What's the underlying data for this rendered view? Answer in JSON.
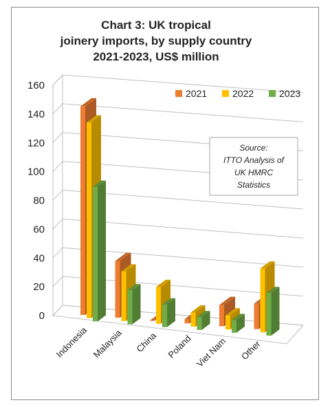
{
  "chart_data": {
    "type": "bar",
    "title": [
      "Chart 3: UK tropical",
      "joinery imports, by supply country",
      "2021-2023, US$ million"
    ],
    "categories": [
      "Indonesia",
      "Malaysia",
      "China",
      "Poland",
      "Viet Nam",
      "Other"
    ],
    "series": [
      {
        "name": "2021",
        "values": [
          147,
          40,
          0,
          3,
          15,
          18
        ],
        "color": "#ED7D31"
      },
      {
        "name": "2022",
        "values": [
          138,
          35,
          26,
          10,
          10,
          45
        ],
        "color": "#FFC000"
      },
      {
        "name": "2023",
        "values": [
          95,
          24,
          16,
          9,
          9,
          30
        ],
        "color": "#70AD47"
      }
    ],
    "ylim": [
      0,
      160
    ],
    "yticks": [
      0,
      20,
      40,
      60,
      80,
      100,
      120,
      140,
      160
    ],
    "grid": true,
    "legend_position": "top-right",
    "annotation": [
      "Source:",
      "ITTO Analysis of",
      "UK HMRC",
      "Statistics"
    ]
  }
}
